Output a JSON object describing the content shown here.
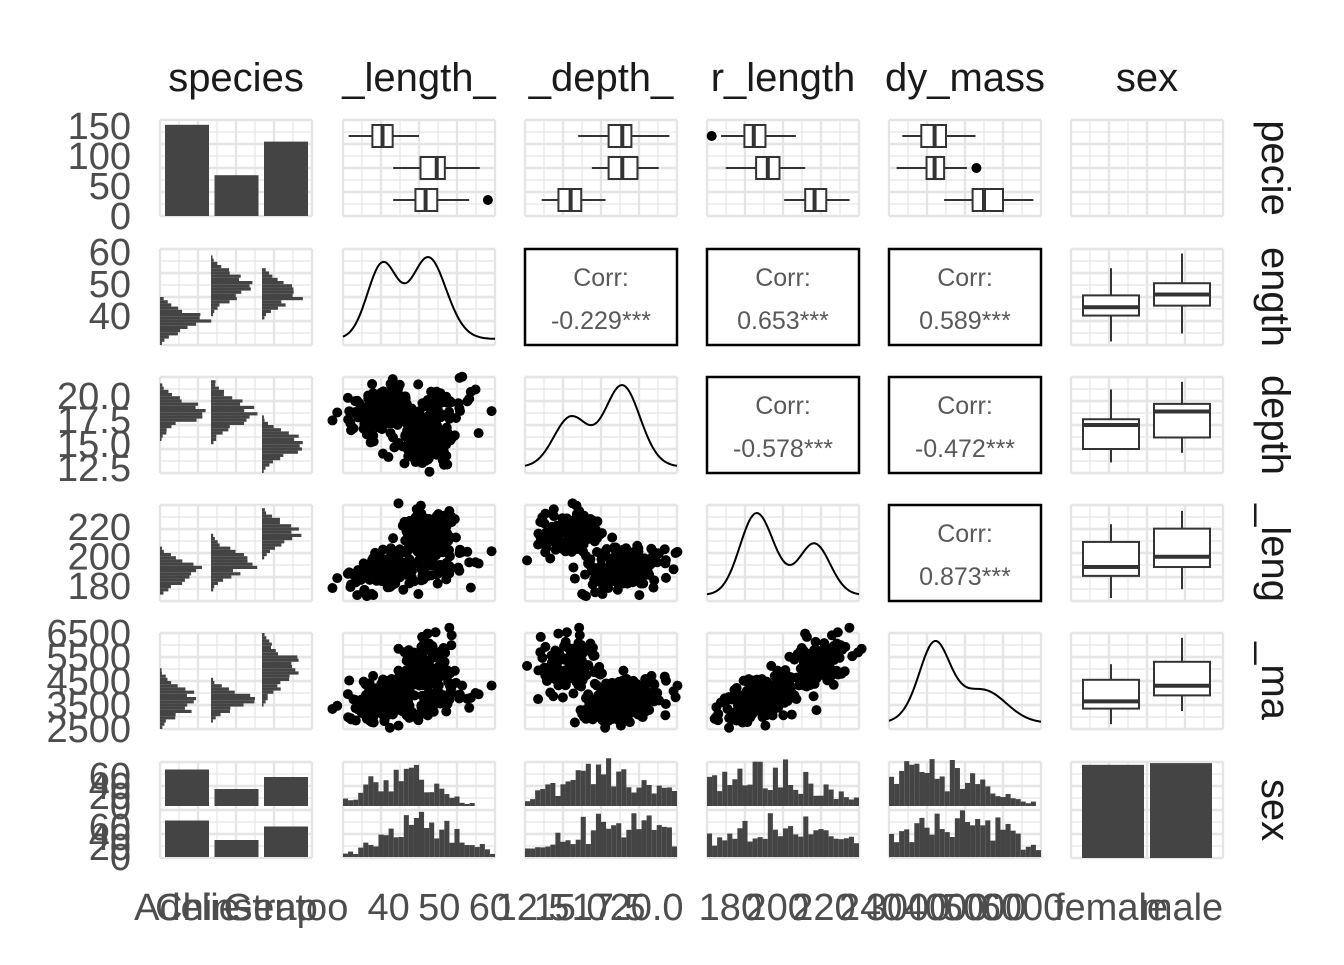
{
  "chart_data": {
    "type": "pairs",
    "variables": [
      "species",
      "bill_length_mm",
      "bill_depth_mm",
      "flipper_length_mm",
      "body_mass_g",
      "sex"
    ],
    "column_strip_labels": [
      "species",
      "_length_",
      "_depth_",
      "r_length",
      "dy_mass",
      "sex"
    ],
    "row_strip_labels": [
      "pecie",
      "ength",
      "depth",
      "_leng",
      "_ma",
      "sex"
    ],
    "species_levels": [
      "Adelie",
      "Chinstrap",
      "Gentoo"
    ],
    "sex_levels": [
      "female",
      "male"
    ],
    "x_tick_labels": {
      "species": [
        "Adelie",
        "Chinstrap",
        "Gentoo"
      ],
      "bill_length_mm": [
        "40",
        "50",
        "60"
      ],
      "bill_depth_mm": [
        "12.5",
        "15.0",
        "17.5",
        "20.0"
      ],
      "flipper_length_mm": [
        "180",
        "200",
        "220",
        "240"
      ],
      "body_mass_g": [
        "3000",
        "4000",
        "5000",
        "6000"
      ],
      "sex": [
        "female",
        "male"
      ]
    },
    "y_tick_labels": {
      "species_counts": [
        "0",
        "50",
        "100",
        "150"
      ],
      "bill_length_mm": [
        "40",
        "50",
        "60"
      ],
      "bill_depth_mm": [
        "12.5",
        "15.0",
        "17.5",
        "20.0"
      ],
      "flipper_length_mm": [
        "180",
        "200",
        "220"
      ],
      "body_mass_g": [
        "2500",
        "3500",
        "4500",
        "5500",
        "6500"
      ],
      "sex_counts": [
        "0",
        "20",
        "40",
        "60"
      ]
    },
    "ranges": {
      "bill_length_mm": [
        31,
        61
      ],
      "bill_depth_mm": [
        12,
        22
      ],
      "flipper_length_mm": [
        170,
        235
      ],
      "body_mass_g": [
        2500,
        6500
      ]
    },
    "species_counts": [
      152,
      68,
      124
    ],
    "species_by_sex_counts": {
      "female": [
        73,
        34,
        58
      ],
      "male": [
        73,
        34,
        61
      ]
    },
    "correlations": [
      {
        "row": "bill_depth_mm",
        "col": "bill_length_mm",
        "label": "Corr:",
        "value": "-0.229***"
      },
      {
        "row": "flipper_length_mm",
        "col": "bill_length_mm",
        "label": "Corr:",
        "value": "0.653***"
      },
      {
        "row": "body_mass_g",
        "col": "bill_length_mm",
        "label": "Corr:",
        "value": "0.589***"
      },
      {
        "row": "flipper_length_mm",
        "col": "bill_depth_mm",
        "label": "Corr:",
        "value": "-0.578***"
      },
      {
        "row": "body_mass_g",
        "col": "bill_depth_mm",
        "label": "Corr:",
        "value": "-0.472***"
      },
      {
        "row": "body_mass_g",
        "col": "flipper_length_mm",
        "label": "Corr:",
        "value": "0.873***"
      }
    ],
    "species_summary": {
      "bill_length_mm": {
        "Adelie": {
          "q1": 36.8,
          "med": 38.8,
          "q3": 40.8,
          "min": 32.1,
          "max": 46.0,
          "out": []
        },
        "Chinstrap": {
          "q1": 46.3,
          "med": 49.5,
          "q3": 51.1,
          "min": 40.9,
          "max": 58.0,
          "out": []
        },
        "Gentoo": {
          "q1": 45.3,
          "med": 47.3,
          "q3": 49.6,
          "min": 40.9,
          "max": 55.9,
          "out": [
            59.6
          ]
        }
      },
      "bill_depth_mm": {
        "Adelie": {
          "q1": 17.5,
          "med": 18.4,
          "q3": 19.0,
          "min": 15.5,
          "max": 21.5,
          "out": []
        },
        "Chinstrap": {
          "q1": 17.5,
          "med": 18.4,
          "q3": 19.4,
          "min": 16.4,
          "max": 20.8,
          "out": []
        },
        "Gentoo": {
          "q1": 14.2,
          "med": 15.0,
          "q3": 15.7,
          "min": 13.1,
          "max": 17.3,
          "out": []
        }
      },
      "flipper_length_mm": {
        "Adelie": {
          "q1": 186,
          "med": 190,
          "q3": 195,
          "min": 176,
          "max": 208,
          "out": [
            172
          ]
        },
        "Chinstrap": {
          "q1": 191,
          "med": 196,
          "q3": 201,
          "min": 178,
          "max": 212,
          "out": []
        },
        "Gentoo": {
          "q1": 212,
          "med": 216,
          "q3": 221,
          "min": 203,
          "max": 231,
          "out": []
        }
      },
      "body_mass_g": {
        "Adelie": {
          "q1": 3350,
          "med": 3700,
          "q3": 4000,
          "min": 2850,
          "max": 4775,
          "out": []
        },
        "Chinstrap": {
          "q1": 3488,
          "med": 3700,
          "q3": 3950,
          "min": 2700,
          "max": 4550,
          "out": [
            4800
          ]
        },
        "Gentoo": {
          "q1": 4700,
          "med": 5000,
          "q3": 5500,
          "min": 3950,
          "max": 6300,
          "out": []
        }
      }
    },
    "sex_summary": {
      "bill_length_mm": {
        "female": {
          "q1": 40.2,
          "med": 42.8,
          "q3": 46.5,
          "min": 32.1,
          "max": 55.0
        },
        "male": {
          "q1": 43.3,
          "med": 46.8,
          "q3": 50.3,
          "min": 34.6,
          "max": 59.6
        }
      },
      "bill_depth_mm": {
        "female": {
          "q1": 14.5,
          "med": 17.0,
          "q3": 17.6,
          "min": 13.1,
          "max": 20.7
        },
        "male": {
          "q1": 15.7,
          "med": 18.4,
          "q3": 19.2,
          "min": 14.1,
          "max": 21.5
        }
      },
      "flipper_length_mm": {
        "female": {
          "q1": 187,
          "med": 193,
          "q3": 210,
          "min": 172,
          "max": 222
        },
        "male": {
          "q1": 193,
          "med": 200,
          "q3": 219,
          "min": 178,
          "max": 231
        }
      },
      "body_mass_g": {
        "female": {
          "q1": 3350,
          "med": 3650,
          "q3": 4550,
          "min": 2700,
          "max": 5200
        },
        "male": {
          "q1": 3900,
          "med": 4300,
          "q3": 5300,
          "min": 3250,
          "max": 6300
        }
      }
    },
    "sex_counts": [
      165,
      168
    ],
    "grid": true,
    "legend": "none"
  }
}
